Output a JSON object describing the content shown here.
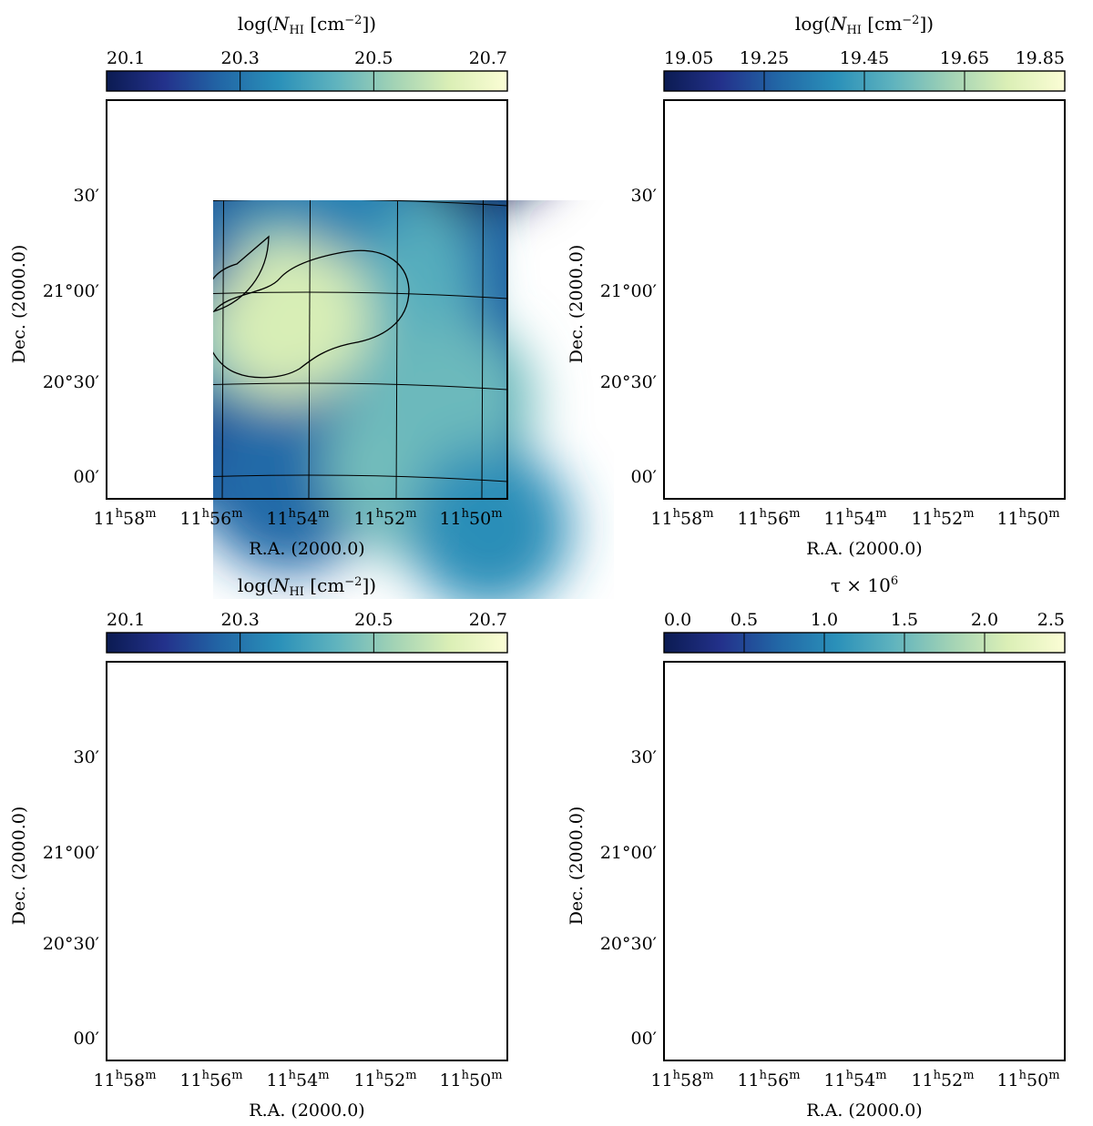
{
  "chart_data": [
    {
      "type": "heatmap",
      "panel": "top-left",
      "title": "log(N_HI [cm^-2])",
      "title_parts": {
        "pre": "log(",
        "sym": "N",
        "sub": "HI",
        "mid": " [cm",
        "sup": "−2",
        "post": "])"
      },
      "cbar_ticks": [
        "20.1",
        "20.3",
        "20.5",
        "20.7"
      ],
      "cbar_range": [
        20.1,
        20.7
      ],
      "dec_labels": [
        "30′",
        "21°00′",
        "20°30′",
        "00′"
      ],
      "ra_labels": [
        "11h58m",
        "11h56m",
        "11h54m",
        "11h52m",
        "11h50m"
      ],
      "xlabel": "R.A. (2000.0)",
      "ylabel": "Dec. (2000.0)",
      "map_style": "smooth",
      "mask": false,
      "contour": true,
      "beam": "large"
    },
    {
      "type": "heatmap",
      "panel": "top-right",
      "title": "log(N_HI [cm^-2])",
      "title_parts": {
        "pre": "log(",
        "sym": "N",
        "sub": "HI",
        "mid": " [cm",
        "sup": "−2",
        "post": "])"
      },
      "cbar_ticks": [
        "19.05",
        "19.25",
        "19.45",
        "19.65",
        "19.85"
      ],
      "cbar_range": [
        19.05,
        19.85
      ],
      "dec_labels": [
        "30′",
        "21°00′",
        "20°30′",
        "00′"
      ],
      "ra_labels": [
        "11h58m",
        "11h56m",
        "11h54m",
        "11h52m",
        "11h50m"
      ],
      "xlabel": "R.A. (2000.0)",
      "ylabel": "Dec. (2000.0)",
      "map_style": "clumpy",
      "mask": true,
      "contour": false,
      "beam": "tiny"
    },
    {
      "type": "heatmap",
      "panel": "bottom-left",
      "title": "log(N_HI [cm^-2])",
      "title_parts": {
        "pre": "log(",
        "sym": "N",
        "sub": "HI",
        "mid": " [cm",
        "sup": "−2",
        "post": "])"
      },
      "cbar_ticks": [
        "20.1",
        "20.3",
        "20.5",
        "20.7"
      ],
      "cbar_range": [
        20.1,
        20.7
      ],
      "dec_labels": [
        "30′",
        "21°00′",
        "20°30′",
        "00′"
      ],
      "ra_labels": [
        "11h58m",
        "11h56m",
        "11h54m",
        "11h52m",
        "11h50m"
      ],
      "xlabel": "R.A. (2000.0)",
      "ylabel": "Dec. (2000.0)",
      "map_style": "combined",
      "mask": false,
      "contour": false,
      "beam": "tiny"
    },
    {
      "type": "heatmap",
      "panel": "bottom-right",
      "title": "τ × 10^6",
      "title_parts": {
        "pre": "τ × 10",
        "sup": "6"
      },
      "cbar_ticks": [
        "0.0",
        "0.5",
        "1.0",
        "1.5",
        "2.0",
        "2.5"
      ],
      "cbar_range": [
        0.0,
        2.5
      ],
      "dec_labels": [
        "30′",
        "21°00′",
        "20°30′",
        "00′"
      ],
      "ra_labels": [
        "11h58m",
        "11h56m",
        "11h54m",
        "11h52m",
        "11h50m"
      ],
      "xlabel": "R.A. (2000.0)",
      "ylabel": "Dec. (2000.0)",
      "map_style": "streaky",
      "mask": false,
      "contour": true,
      "beam": "medium"
    }
  ],
  "colormap": [
    "#0b1b52",
    "#23318b",
    "#2267a6",
    "#2a90b9",
    "#5fb3be",
    "#a1d2b5",
    "#dbefb6",
    "#fbfdd5"
  ]
}
